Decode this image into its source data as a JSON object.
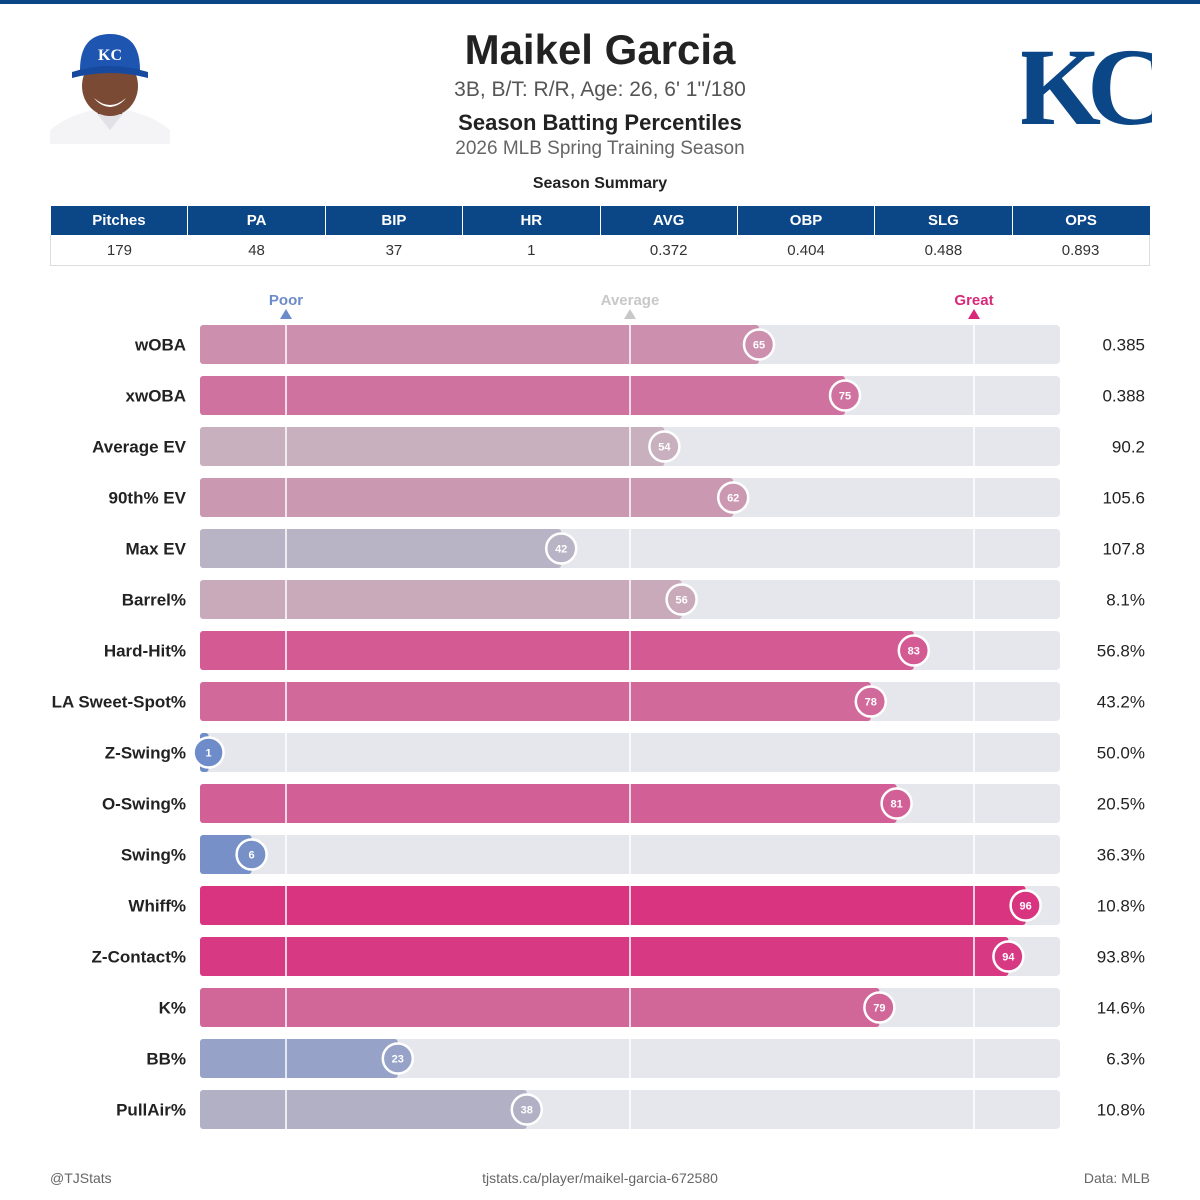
{
  "header": {
    "name": "Maikel Garcia",
    "bio": "3B, B/T: R/R, Age: 26, 6' 1\"/180",
    "subtitle": "Season Batting Percentiles",
    "season": "2026 MLB Spring Training Season",
    "cap_logo": "KC"
  },
  "summary": {
    "title": "Season Summary",
    "columns": [
      "Pitches",
      "PA",
      "BIP",
      "HR",
      "AVG",
      "OBP",
      "SLG",
      "OPS"
    ],
    "values": [
      "179",
      "48",
      "37",
      "1",
      "0.372",
      "0.404",
      "0.488",
      "0.893"
    ]
  },
  "colors": {
    "brand": "#0b4687",
    "poor": "#6c8bc9",
    "average": "#c8c8c8",
    "great": "#d9287a",
    "track": "#e6e7ec"
  },
  "chart_data": {
    "type": "bar",
    "orientation": "horizontal",
    "scale": [
      0,
      100
    ],
    "reference_markers": [
      {
        "label": "Poor",
        "value": 10
      },
      {
        "label": "Average",
        "value": 50
      },
      {
        "label": "Great",
        "value": 90
      }
    ],
    "categories": [
      "wOBA",
      "xwOBA",
      "Average EV",
      "90th% EV",
      "Max EV",
      "Barrel%",
      "Hard-Hit%",
      "LA Sweet-Spot%",
      "Z-Swing%",
      "O-Swing%",
      "Swing%",
      "Whiff%",
      "Z-Contact%",
      "K%",
      "BB%",
      "PullAir%"
    ],
    "percentiles": [
      65,
      75,
      54,
      62,
      42,
      56,
      83,
      78,
      1,
      81,
      6,
      96,
      94,
      79,
      23,
      38
    ],
    "stat_values": [
      "0.385",
      "0.388",
      "90.2",
      "105.6",
      "107.8",
      "8.1%",
      "56.8%",
      "43.2%",
      "50.0%",
      "20.5%",
      "36.3%",
      "10.8%",
      "93.8%",
      "14.6%",
      "6.3%",
      "10.8%"
    ]
  },
  "footer": {
    "left": "@TJStats",
    "center": "tjstats.ca/player/maikel-garcia-672580",
    "right": "Data: MLB"
  }
}
